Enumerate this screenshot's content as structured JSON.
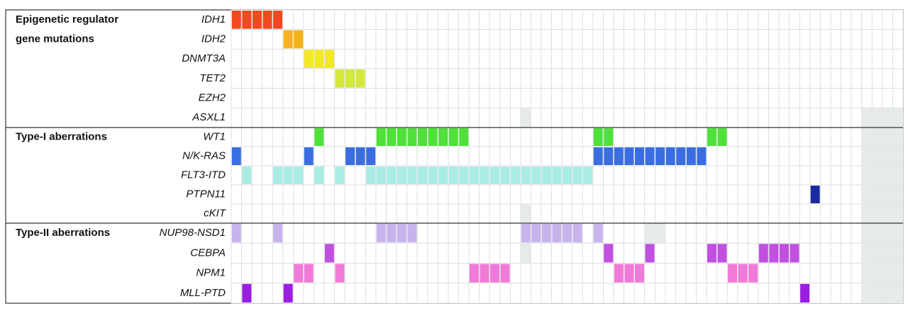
{
  "chart_data": {
    "type": "oncoprint",
    "columns": 65,
    "not_tested_color": "#e6eae8",
    "sections": [
      {
        "title_lines": [
          "Epigenetic regulator",
          "gene mutations"
        ],
        "genes": [
          {
            "name": "IDH1",
            "color": "#f04a1e",
            "mutated": [
              0,
              1,
              2,
              3,
              4
            ],
            "not_tested": []
          },
          {
            "name": "IDH2",
            "color": "#f6b21a",
            "mutated": [
              5,
              6
            ],
            "not_tested": []
          },
          {
            "name": "DNMT3A",
            "color": "#f2e825",
            "mutated": [
              7,
              8,
              9
            ],
            "not_tested": []
          },
          {
            "name": "TET2",
            "color": "#d4e83a",
            "mutated": [
              10,
              11,
              12
            ],
            "not_tested": []
          },
          {
            "name": "EZH2",
            "color": "#888888",
            "mutated": [],
            "not_tested": []
          },
          {
            "name": "ASXL1",
            "color": "#888888",
            "mutated": [],
            "not_tested": [
              28,
              61,
              62,
              63,
              64
            ]
          }
        ]
      },
      {
        "title_lines": [
          "Type-I aberrations"
        ],
        "genes": [
          {
            "name": "WT1",
            "color": "#4fe03a",
            "mutated": [
              8,
              14,
              15,
              16,
              17,
              18,
              19,
              20,
              21,
              22,
              35,
              36,
              46,
              47
            ],
            "not_tested": [
              61,
              62,
              63,
              64
            ]
          },
          {
            "name": "N/K-RAS",
            "color": "#3a6ee0",
            "mutated": [
              0,
              7,
              11,
              12,
              13,
              35,
              36,
              37,
              38,
              39,
              40,
              41,
              42,
              43,
              44,
              45
            ],
            "not_tested": [
              61,
              62,
              63,
              64
            ]
          },
          {
            "name": "FLT3-ITD",
            "color": "#a8ece4",
            "mutated": [
              1,
              4,
              5,
              6,
              8,
              10,
              13,
              14,
              15,
              16,
              17,
              18,
              19,
              20,
              21,
              22,
              23,
              24,
              25,
              26,
              27,
              28,
              29,
              30,
              31,
              32,
              33,
              34
            ],
            "not_tested": [
              61,
              62,
              63,
              64
            ]
          },
          {
            "name": "PTPN11",
            "color": "#1a2aa0",
            "mutated": [
              56
            ],
            "not_tested": [
              61,
              62,
              63,
              64
            ]
          },
          {
            "name": "cKIT",
            "color": "#888888",
            "mutated": [],
            "not_tested": [
              28,
              61,
              62,
              63,
              64
            ]
          }
        ]
      },
      {
        "title_lines": [
          "Type-II aberrations"
        ],
        "genes": [
          {
            "name": "NUP98-NSD1",
            "color": "#c8b4ec",
            "mutated": [
              0,
              4,
              14,
              15,
              16,
              17,
              28,
              29,
              30,
              31,
              32,
              33,
              35
            ],
            "not_tested": [
              40,
              41,
              61,
              62,
              63,
              64
            ]
          },
          {
            "name": "CEBPA",
            "color": "#c050e0",
            "mutated": [
              9,
              36,
              40,
              46,
              47,
              51,
              52,
              53,
              54
            ],
            "not_tested": [
              28,
              61,
              62,
              63,
              64
            ]
          },
          {
            "name": "NPM1",
            "color": "#f07ad8",
            "mutated": [
              6,
              7,
              10,
              23,
              24,
              25,
              26,
              37,
              38,
              39,
              48,
              49,
              50
            ],
            "not_tested": [
              61,
              62,
              63,
              64
            ]
          },
          {
            "name": "MLL-PTD",
            "color": "#9a1ee0",
            "mutated": [
              1,
              5,
              55
            ],
            "not_tested": [
              61,
              62,
              63,
              64
            ]
          }
        ]
      }
    ]
  }
}
